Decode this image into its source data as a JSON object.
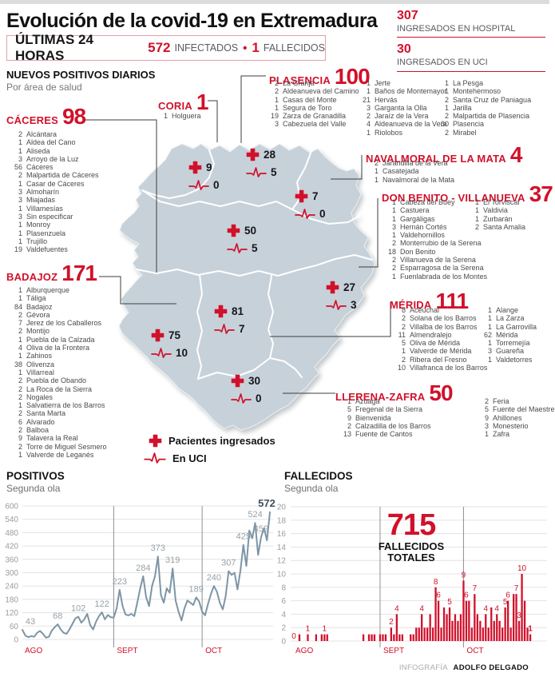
{
  "title": "Evolución de la covid-19 en Extremadura",
  "summary": {
    "period_label": "ÚLTIMAS 24 HORAS",
    "infected_value": "572",
    "infected_label": "INFECTADOS",
    "bullet": "•",
    "deaths_value": "1",
    "deaths_label": "FALLECIDOS"
  },
  "stats": {
    "hospital": {
      "value": "307",
      "label": "INGRESADOS EN HOSPITAL"
    },
    "uci": {
      "value": "30",
      "label": "INGRESADOS EN UCI"
    }
  },
  "section": {
    "title": "NUEVOS POSITIVOS DIARIOS",
    "subtitle": "Por área de salud"
  },
  "legend": {
    "ingresados": "Pacientes ingresados",
    "uci": "En UCI"
  },
  "footer": {
    "credit_label": "INFOGRAFÍA",
    "credit_name": "ADOLFO DELGADO"
  },
  "colors": {
    "accent_red": "#d1112b",
    "map_fill": "#c7d1d9",
    "line_series": "#7d95a6"
  },
  "areas": [
    {
      "id": "caceres",
      "name": "CÁCERES",
      "total": "98",
      "columns": [
        [
          [
            "2",
            "Alcántara"
          ],
          [
            "1",
            "Aldea del Cano"
          ],
          [
            "1",
            "Aliseda"
          ],
          [
            "3",
            "Arroyo de la Luz"
          ],
          [
            "56",
            "Cáceres"
          ],
          [
            "2",
            "Malpartida de Cáceres"
          ],
          [
            "1",
            "Casar de Cáceres"
          ],
          [
            "3",
            "Almoharín"
          ],
          [
            "3",
            "Miajadas"
          ],
          [
            "1",
            "Villamesías"
          ],
          [
            "3",
            "Sin especificar"
          ],
          [
            "1",
            "Monroy"
          ],
          [
            "1",
            "Plasenzuela"
          ],
          [
            "1",
            "Trujillo"
          ],
          [
            "19",
            "Valdefuentes"
          ]
        ]
      ]
    },
    {
      "id": "coria",
      "name": "CORIA",
      "total": "1",
      "columns": [
        [
          [
            "1",
            "Holguera"
          ]
        ]
      ]
    },
    {
      "id": "plasencia",
      "name": "PLASENCIA",
      "total": "100",
      "columns": [
        [
          [
            "2",
            "La Granja"
          ],
          [
            "2",
            "Aldeanueva del Camino"
          ],
          [
            "1",
            "Casas del Monte"
          ],
          [
            "1",
            "Segura de Toro"
          ],
          [
            "19",
            "Zarza de Granadilla"
          ],
          [
            "3",
            "Cabezuela del Valle"
          ]
        ],
        [
          [
            "1",
            "Jerte"
          ],
          [
            "1",
            "Baños de Montemayor"
          ],
          [
            "21",
            "Hervás"
          ],
          [
            "3",
            "Garganta la Olla"
          ],
          [
            "2",
            "Jaraíz de la Vera"
          ],
          [
            "4",
            "Aldeanueva de la Vera"
          ],
          [
            "1",
            "Riolobos"
          ]
        ],
        [
          [
            "1",
            "La Pesga"
          ],
          [
            "1",
            "Montehermoso"
          ],
          [
            "2",
            "Santa Cruz de Paniagua"
          ],
          [
            "1",
            "Jarilla"
          ],
          [
            "2",
            "Malpartida de Plasencia"
          ],
          [
            "30",
            "Plasencia"
          ],
          [
            "2",
            "Mirabel"
          ]
        ]
      ]
    },
    {
      "id": "navalmoral",
      "name": "NAVALMORAL DE LA MATA",
      "total": "4",
      "columns": [
        [
          [
            "2",
            "Jarandilla de la Vera"
          ],
          [
            "1",
            "Casatejada"
          ],
          [
            "1",
            "Navalmoral de la Mata"
          ]
        ]
      ]
    },
    {
      "id": "donbenito",
      "name": "DON BENITO - VILLANUEVA",
      "total": "37",
      "columns": [
        [
          [
            "1",
            "Cabeza del Buey"
          ],
          [
            "1",
            "Castuera"
          ],
          [
            "1",
            "Gargáligas"
          ],
          [
            "3",
            "Hernán Cortés"
          ],
          [
            "1",
            "Valdehornillos"
          ],
          [
            "2",
            "Monterrubio de la Serena"
          ],
          [
            "18",
            "Don Benito"
          ],
          [
            "2",
            "Villanueva de la Serena"
          ],
          [
            "2",
            "Esparragosa de la Serena"
          ],
          [
            "1",
            "Fuenlabrada de los Montes"
          ]
        ],
        [
          [
            "1",
            "El Torviscal"
          ],
          [
            "1",
            "Valdivia"
          ],
          [
            "1",
            "Zurbarán"
          ],
          [
            "2",
            "Santa Amalia"
          ]
        ]
      ]
    },
    {
      "id": "merida",
      "name": "MÉRIDA",
      "total": "111",
      "columns": [
        [
          [
            "8",
            "Aceuchal"
          ],
          [
            "2",
            "Solana de los Barros"
          ],
          [
            "2",
            "Villalba de los Barros"
          ],
          [
            "11",
            "Almendralejo"
          ],
          [
            "5",
            "Oliva de Mérida"
          ],
          [
            "1",
            "Valverde de Mérida"
          ],
          [
            "2",
            "Ribera del Fresno"
          ],
          [
            "10",
            "Villafranca de los Barros"
          ]
        ],
        [
          [
            "1",
            "Alange"
          ],
          [
            "1",
            "La Zarza"
          ],
          [
            "1",
            "La Garrovilla"
          ],
          [
            "62",
            "Mérida"
          ],
          [
            "1",
            "Torremejía"
          ],
          [
            "3",
            "Guareña"
          ],
          [
            "1",
            "Valdetorres"
          ]
        ]
      ]
    },
    {
      "id": "llerena",
      "name": "LLERENA-ZAFRA",
      "total": "50",
      "columns": [
        [
          [
            "1",
            "Azuaga"
          ],
          [
            "5",
            "Fregenal de la Sierra"
          ],
          [
            "9",
            "Bienvenida"
          ],
          [
            "2",
            "Calzadilla de los Barros"
          ],
          [
            "13",
            "Fuente de Cantos"
          ]
        ],
        [
          [
            "2",
            "Feria"
          ],
          [
            "5",
            "Fuente del Maestre"
          ],
          [
            "9",
            "Ahillones"
          ],
          [
            "3",
            "Monesterio"
          ],
          [
            "1",
            "Zafra"
          ]
        ]
      ]
    },
    {
      "id": "badajoz",
      "name": "BADAJOZ",
      "total": "171",
      "columns": [
        [
          [
            "1",
            "Alburquerque"
          ],
          [
            "1",
            "Táliga"
          ],
          [
            "84",
            "Badajoz"
          ],
          [
            "2",
            "Gévora"
          ],
          [
            "7",
            "Jerez de los Caballeros"
          ],
          [
            "2",
            "Montijo"
          ],
          [
            "1",
            "Puebla de la Calzada"
          ],
          [
            "4",
            "Oliva de la Frontera"
          ],
          [
            "1",
            "Zahinos"
          ],
          [
            "38",
            "Olivenza"
          ],
          [
            "1",
            "Villarreal"
          ],
          [
            "2",
            "Puebla de Obando"
          ],
          [
            "2",
            "La Roca de la Sierra"
          ],
          [
            "2",
            "Nogales"
          ],
          [
            "1",
            "Salvatierra de los Barros"
          ],
          [
            "2",
            "Santa Marta"
          ],
          [
            "6",
            "Alvarado"
          ],
          [
            "2",
            "Balboa"
          ],
          [
            "9",
            "Talavera la Real"
          ],
          [
            "2",
            "Torre de Miguel Sesmero"
          ],
          [
            "1",
            "Valverde de Leganés"
          ]
        ]
      ]
    }
  ],
  "map_markers": [
    {
      "area": "coria",
      "ingresados": "9",
      "uci": "0"
    },
    {
      "area": "plasencia",
      "ingresados": "28",
      "uci": "5"
    },
    {
      "area": "navalmoral",
      "ingresados": "7",
      "uci": "0"
    },
    {
      "area": "caceres",
      "ingresados": "50",
      "uci": "5"
    },
    {
      "area": "donbenito",
      "ingresados": "27",
      "uci": "3"
    },
    {
      "area": "merida",
      "ingresados": "81",
      "uci": "7"
    },
    {
      "area": "badajoz",
      "ingresados": "75",
      "uci": "10"
    },
    {
      "area": "llerena",
      "ingresados": "30",
      "uci": "0"
    }
  ],
  "chart_data": [
    {
      "type": "line",
      "title": "POSITIVOS",
      "subtitle": "Segunda ola",
      "color": "#7d95a6",
      "ylim": [
        0,
        600
      ],
      "yticks": [
        0,
        60,
        120,
        180,
        240,
        300,
        360,
        420,
        480,
        540,
        600
      ],
      "grid": true,
      "months": [
        {
          "label": "AGO",
          "start_index": 0
        },
        {
          "label": "SEPT",
          "start_index": 31
        },
        {
          "label": "OCT",
          "start_index": 61
        }
      ],
      "values": [
        43,
        18,
        10,
        15,
        12,
        30,
        38,
        25,
        8,
        12,
        40,
        55,
        68,
        45,
        30,
        25,
        45,
        70,
        95,
        102,
        75,
        90,
        115,
        65,
        45,
        80,
        105,
        122,
        90,
        110,
        100,
        98,
        140,
        223,
        150,
        112,
        108,
        115,
        105,
        165,
        230,
        284,
        190,
        150,
        240,
        285,
        373,
        200,
        165,
        230,
        210,
        319,
        175,
        125,
        85,
        140,
        175,
        165,
        155,
        189,
        170,
        125,
        108,
        160,
        205,
        240,
        215,
        165,
        135,
        195,
        307,
        290,
        300,
        225,
        310,
        425,
        330,
        490,
        455,
        524,
        380,
        459,
        500,
        445,
        572
      ],
      "point_labels": [
        {
          "index": 0,
          "text": "43"
        },
        {
          "index": 12,
          "text": "68"
        },
        {
          "index": 19,
          "text": "102"
        },
        {
          "index": 27,
          "text": "122"
        },
        {
          "index": 33,
          "text": "223"
        },
        {
          "index": 41,
          "text": "284"
        },
        {
          "index": 46,
          "text": "373"
        },
        {
          "index": 51,
          "text": "319"
        },
        {
          "index": 59,
          "text": "189"
        },
        {
          "index": 65,
          "text": "240"
        },
        {
          "index": 70,
          "text": "307"
        },
        {
          "index": 75,
          "text": "425"
        },
        {
          "index": 79,
          "text": "524"
        },
        {
          "index": 81,
          "text": "459"
        },
        {
          "index": 84,
          "text": "572",
          "bold": true
        }
      ]
    },
    {
      "type": "bar",
      "title": "FALLECIDOS",
      "subtitle": "Segunda ola",
      "color": "#d1112b",
      "ylim": [
        0,
        20
      ],
      "yticks": [
        0,
        2,
        4,
        6,
        8,
        10,
        12,
        14,
        16,
        18,
        20
      ],
      "grid": true,
      "months": [
        {
          "label": "AGO",
          "start_index": 0
        },
        {
          "label": "SEPT",
          "start_index": 31
        },
        {
          "label": "OCT",
          "start_index": 61
        }
      ],
      "values": [
        0,
        0,
        1,
        0,
        0,
        1,
        0,
        0,
        1,
        0,
        1,
        1,
        1,
        0,
        0,
        0,
        0,
        0,
        0,
        0,
        0,
        0,
        0,
        0,
        0,
        1,
        0,
        1,
        1,
        1,
        0,
        1,
        1,
        1,
        0,
        2,
        1,
        4,
        1,
        1,
        0,
        0,
        1,
        1,
        2,
        2,
        4,
        2,
        2,
        4,
        2,
        8,
        6,
        2,
        5,
        4,
        5,
        3,
        4,
        3,
        4,
        9,
        6,
        6,
        2,
        7,
        4,
        3,
        2,
        4,
        2,
        5,
        3,
        4,
        3,
        2,
        5,
        6,
        2,
        7,
        7,
        3,
        10,
        6,
        2,
        1
      ],
      "bar_labels": [
        {
          "index": 0,
          "text": "0"
        },
        {
          "index": 5,
          "text": "1"
        },
        {
          "index": 11,
          "text": "1"
        },
        {
          "index": 35,
          "text": "2"
        },
        {
          "index": 37,
          "text": "4"
        },
        {
          "index": 46,
          "text": "4"
        },
        {
          "index": 51,
          "text": "8"
        },
        {
          "index": 52,
          "text": "6"
        },
        {
          "index": 56,
          "text": "5"
        },
        {
          "index": 61,
          "text": "9"
        },
        {
          "index": 62,
          "text": "6"
        },
        {
          "index": 65,
          "text": "7"
        },
        {
          "index": 69,
          "text": "4"
        },
        {
          "index": 73,
          "text": "4"
        },
        {
          "index": 76,
          "text": "5"
        },
        {
          "index": 77,
          "text": "6"
        },
        {
          "index": 80,
          "text": "7"
        },
        {
          "index": 81,
          "text": "3"
        },
        {
          "index": 82,
          "text": "10"
        },
        {
          "index": 85,
          "text": "1",
          "bold": true
        }
      ],
      "annotation": {
        "value": "715",
        "line1": "FALLECIDOS",
        "line2": "TOTALES"
      }
    }
  ]
}
